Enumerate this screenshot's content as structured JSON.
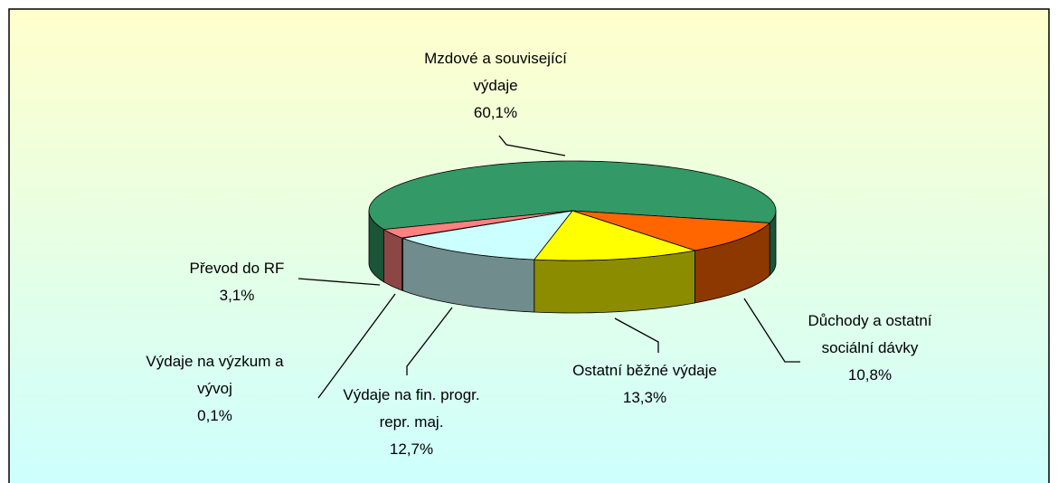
{
  "chart_data": {
    "type": "pie3d",
    "categories": [
      "Mzdové a související výdaje",
      "Důchody a ostatní sociální dávky",
      "Ostatní běžné výdaje",
      "Výdaje na fin. progr. repr. maj.",
      "Výdaje na výzkum a vývoj",
      "Převod do RF"
    ],
    "values": [
      60.1,
      10.8,
      13.3,
      12.7,
      0.1,
      3.1
    ],
    "value_labels": [
      "60,1%",
      "10,8%",
      "13,3%",
      "12,7%",
      "0,1%",
      "3,1%"
    ],
    "colors": [
      "#339966",
      "#ff6600",
      "#ffff00",
      "#ccffff",
      "#000080",
      "#ff8080"
    ]
  }
}
